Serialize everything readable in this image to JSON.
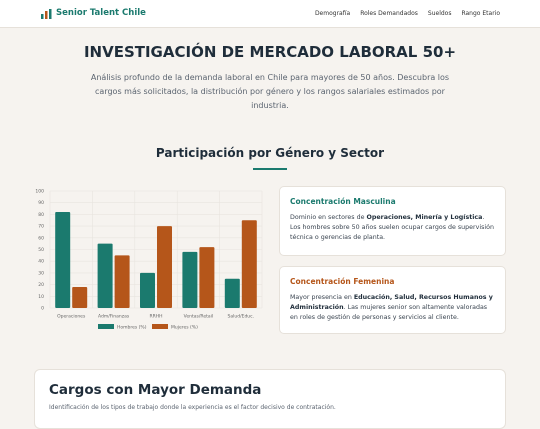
{
  "nav": {
    "brand": "Senior Talent Chile",
    "links": [
      "Demografía",
      "Roles Demandados",
      "Sueldos",
      "Rango Etario"
    ]
  },
  "hero": {
    "title": "INVESTIGACIÓN DE MERCADO LABORAL 50+",
    "text": "Análisis profundo de la demanda laboral en Chile para mayores de 50 años. Descubra los cargos más solicitados, la distribución por género y los rangos salariales estimados por industria."
  },
  "section": {
    "title": "Participación por Género y Sector"
  },
  "chart_data": {
    "type": "bar",
    "categories": [
      "Operaciones",
      "Adm/Finanzas",
      "RRHH",
      "Ventas/Retail",
      "Salud/Educ."
    ],
    "series": [
      {
        "name": "Hombres (%)",
        "color": "#1b7a6e",
        "values": [
          82,
          55,
          30,
          48,
          25
        ]
      },
      {
        "name": "Mujeres (%)",
        "color": "#b5561a",
        "values": [
          18,
          45,
          70,
          52,
          75
        ]
      }
    ],
    "ylim": [
      0,
      100
    ],
    "yticks": [
      0,
      10,
      20,
      30,
      40,
      50,
      60,
      70,
      80,
      90,
      100
    ],
    "grid": true,
    "legend": "bottom"
  },
  "cards": [
    {
      "title": "Concentración Masculina",
      "color": "#1b7a6e",
      "description": [
        "Dominio en sectores de ",
        "Operaciones, Minería y Logística",
        ". Los hombres sobre 50 años suelen ocupar cargos de supervisión técnica o gerencias de planta."
      ]
    },
    {
      "title": "Concentración Femenina",
      "color": "#b5561a",
      "description": [
        "Mayor presencia en ",
        "Educación, Salud, Recursos Humanos y Administración",
        ". Las mujeres senior son altamente valoradas en roles de gestión de personas y servicios al cliente."
      ]
    }
  ],
  "demand": {
    "title": "Cargos con Mayor Demanda",
    "text": "Identificación de los tipos de trabajo donde la experiencia es el factor decisivo de contratación."
  }
}
